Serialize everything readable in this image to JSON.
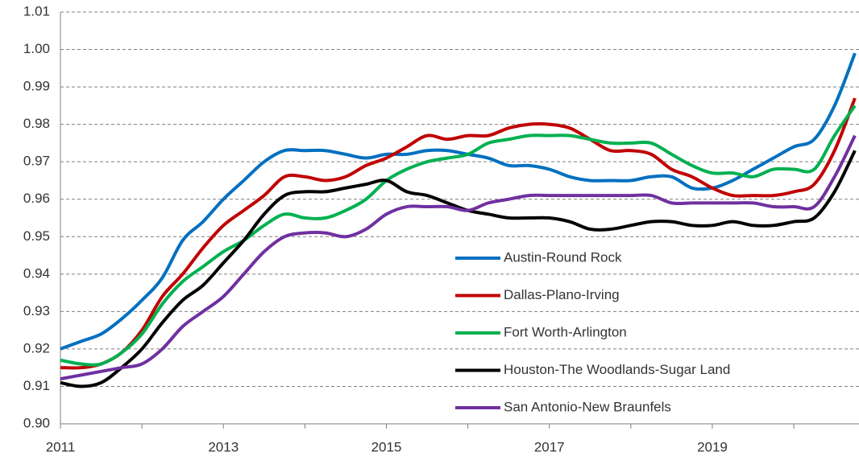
{
  "chart_data": {
    "type": "line",
    "x": [
      2011,
      2011.25,
      2011.5,
      2011.75,
      2012,
      2012.25,
      2012.5,
      2012.75,
      2013,
      2013.25,
      2013.5,
      2013.75,
      2014,
      2014.25,
      2014.5,
      2014.75,
      2015,
      2015.25,
      2015.5,
      2015.75,
      2016,
      2016.25,
      2016.5,
      2016.75,
      2017,
      2017.25,
      2017.5,
      2017.75,
      2018,
      2018.25,
      2018.5,
      2018.75,
      2019,
      2019.25,
      2019.5,
      2019.75,
      2020,
      2020.25,
      2020.5,
      2020.75
    ],
    "series": [
      {
        "name": "Austin-Round Rock",
        "color": "#0070c0",
        "values": [
          0.92,
          0.922,
          0.924,
          0.928,
          0.933,
          0.939,
          0.949,
          0.954,
          0.96,
          0.965,
          0.97,
          0.973,
          0.973,
          0.973,
          0.972,
          0.971,
          0.972,
          0.972,
          0.973,
          0.973,
          0.972,
          0.971,
          0.969,
          0.969,
          0.968,
          0.966,
          0.965,
          0.965,
          0.965,
          0.966,
          0.966,
          0.963,
          0.963,
          0.965,
          0.968,
          0.971,
          0.974,
          0.976,
          0.985,
          0.999
        ]
      },
      {
        "name": "Dallas-Plano-Irving",
        "color": "#c00000",
        "values": [
          0.915,
          0.915,
          0.916,
          0.919,
          0.925,
          0.934,
          0.94,
          0.947,
          0.953,
          0.957,
          0.961,
          0.966,
          0.966,
          0.965,
          0.966,
          0.969,
          0.971,
          0.974,
          0.977,
          0.976,
          0.977,
          0.977,
          0.979,
          0.98,
          0.98,
          0.979,
          0.976,
          0.973,
          0.973,
          0.972,
          0.968,
          0.966,
          0.963,
          0.961,
          0.961,
          0.961,
          0.962,
          0.964,
          0.973,
          0.987
        ]
      },
      {
        "name": "Fort Worth-Arlington",
        "color": "#00b050",
        "values": [
          0.917,
          0.916,
          0.916,
          0.919,
          0.924,
          0.932,
          0.938,
          0.942,
          0.946,
          0.949,
          0.953,
          0.956,
          0.955,
          0.955,
          0.957,
          0.96,
          0.965,
          0.968,
          0.97,
          0.971,
          0.972,
          0.975,
          0.976,
          0.977,
          0.977,
          0.977,
          0.976,
          0.975,
          0.975,
          0.975,
          0.972,
          0.969,
          0.967,
          0.967,
          0.966,
          0.968,
          0.968,
          0.968,
          0.977,
          0.985
        ]
      },
      {
        "name": "Houston-The Woodlands-Sugar Land",
        "color": "#000000",
        "values": [
          0.911,
          0.91,
          0.911,
          0.915,
          0.92,
          0.927,
          0.933,
          0.937,
          0.943,
          0.949,
          0.956,
          0.961,
          0.962,
          0.962,
          0.963,
          0.964,
          0.965,
          0.962,
          0.961,
          0.959,
          0.957,
          0.956,
          0.955,
          0.955,
          0.955,
          0.954,
          0.952,
          0.952,
          0.953,
          0.954,
          0.954,
          0.953,
          0.953,
          0.954,
          0.953,
          0.953,
          0.954,
          0.955,
          0.962,
          0.973
        ]
      },
      {
        "name": "San Antonio-New Braunfels",
        "color": "#7030a0",
        "values": [
          0.912,
          0.913,
          0.914,
          0.915,
          0.916,
          0.92,
          0.926,
          0.93,
          0.934,
          0.94,
          0.946,
          0.95,
          0.951,
          0.951,
          0.95,
          0.952,
          0.956,
          0.958,
          0.958,
          0.958,
          0.957,
          0.959,
          0.96,
          0.961,
          0.961,
          0.961,
          0.961,
          0.961,
          0.961,
          0.961,
          0.959,
          0.959,
          0.959,
          0.959,
          0.959,
          0.958,
          0.958,
          0.958,
          0.966,
          0.977
        ]
      }
    ],
    "xlim": [
      2011,
      2020.8
    ],
    "xticks": [
      2011,
      2013,
      2015,
      2017,
      2019
    ],
    "xminorticks": [
      2012,
      2014,
      2016,
      2018,
      2020
    ],
    "ylim": [
      0.9,
      1.01
    ],
    "yticks": [
      {
        "value": 0.9,
        "label": "0.90"
      },
      0.91,
      0.92,
      0.93,
      0.94,
      0.95,
      0.96,
      0.97,
      0.98,
      0.99,
      {
        "value": 1.0,
        "label": "1.00"
      },
      1.01
    ],
    "grid": true,
    "legend": "lower-right"
  }
}
